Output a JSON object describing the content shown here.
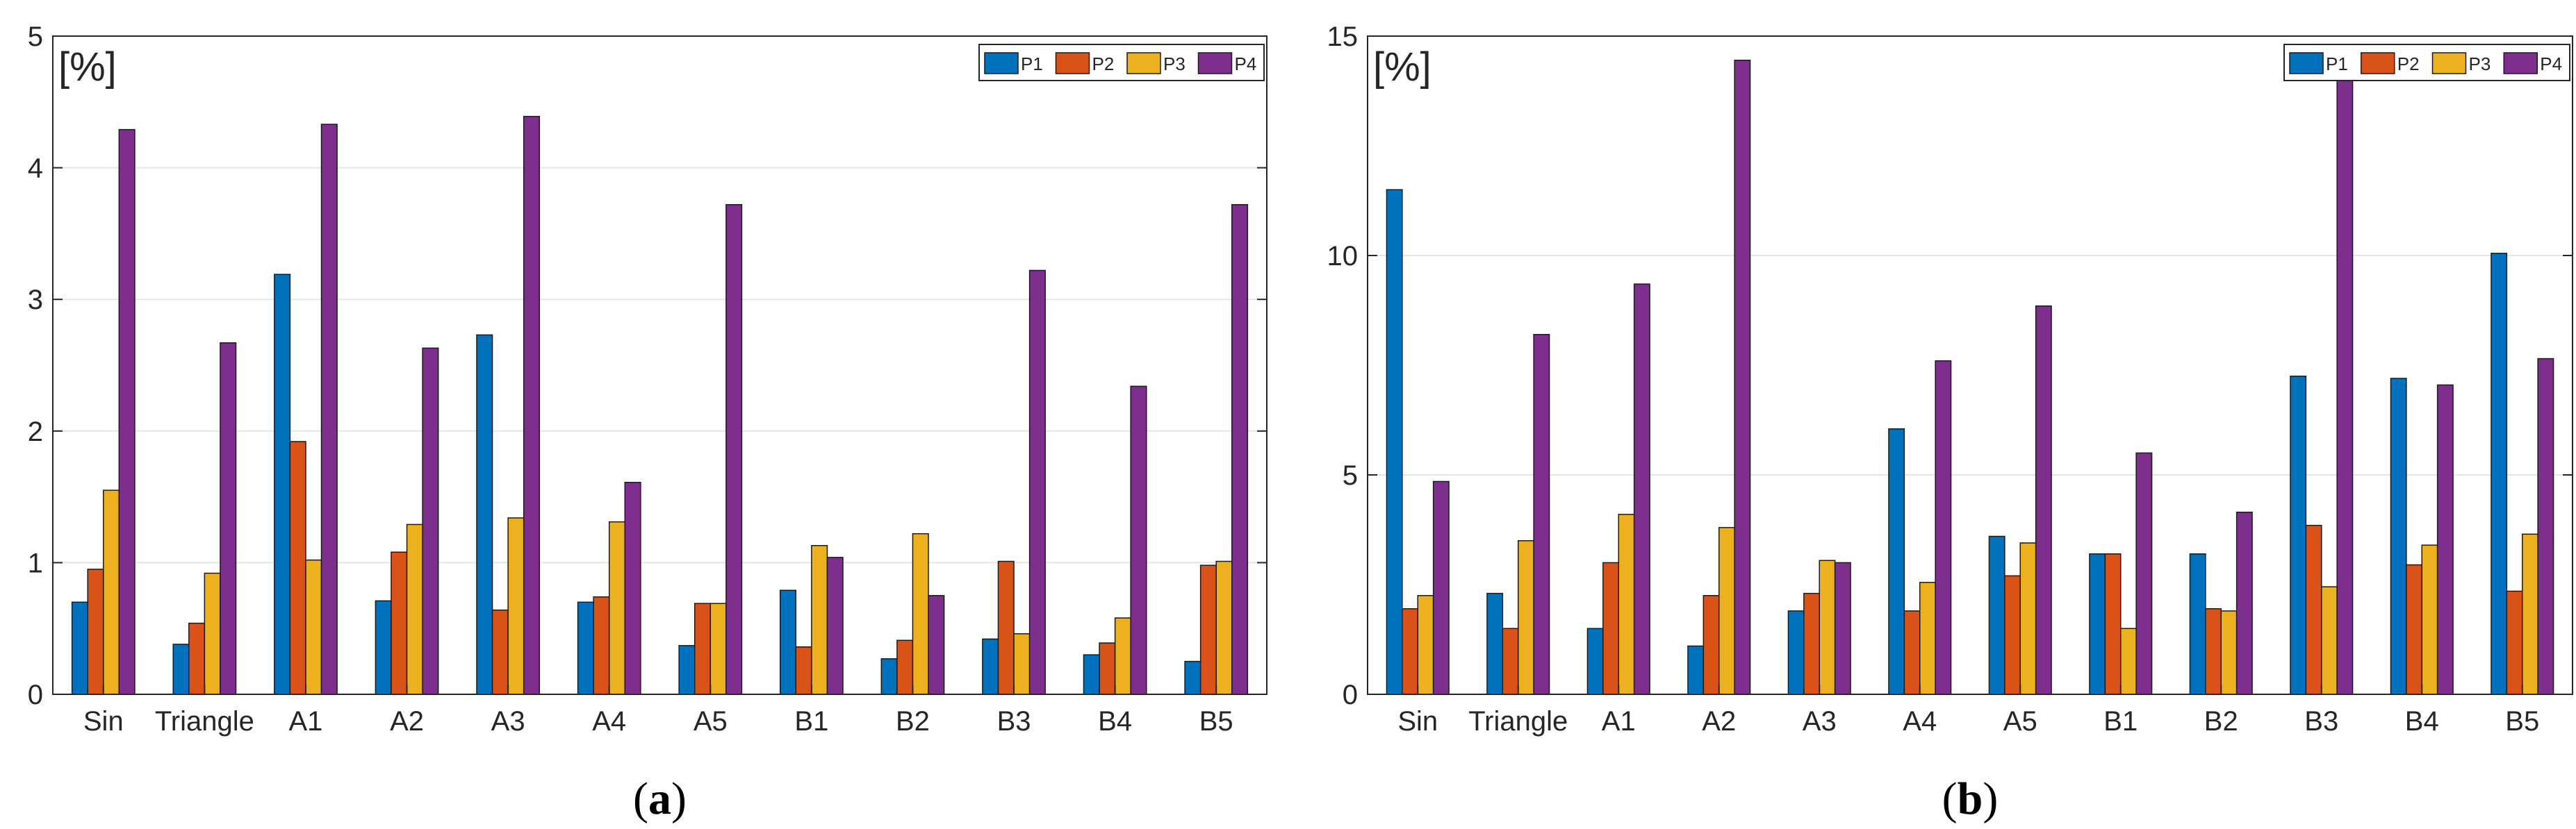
{
  "chart_data": [
    {
      "type": "bar",
      "panel_label": {
        "open": "(",
        "letter": "a",
        "close": ")"
      },
      "unit_label": "[%]",
      "categories": [
        "Sin",
        "Triangle",
        "A1",
        "A2",
        "A3",
        "A4",
        "A5",
        "B1",
        "B2",
        "B3",
        "B4",
        "B5"
      ],
      "ylim": [
        0,
        5
      ],
      "yticks": [
        0,
        1,
        2,
        3,
        4,
        5
      ],
      "grid": true,
      "legend_position": "top-right",
      "series": [
        {
          "name": "P1",
          "color": "#0072BD",
          "values": [
            0.7,
            0.38,
            3.19,
            0.71,
            2.73,
            0.7,
            0.37,
            0.79,
            0.27,
            0.42,
            0.3,
            0.25
          ]
        },
        {
          "name": "P2",
          "color": "#D95319",
          "values": [
            0.95,
            0.54,
            1.92,
            1.08,
            0.64,
            0.74,
            0.69,
            0.36,
            0.41,
            1.01,
            0.39,
            0.98
          ]
        },
        {
          "name": "P3",
          "color": "#EDB120",
          "values": [
            1.55,
            0.92,
            1.02,
            1.29,
            1.34,
            1.31,
            0.69,
            1.13,
            1.22,
            0.46,
            0.58,
            1.01
          ]
        },
        {
          "name": "P4",
          "color": "#7E2F8E",
          "values": [
            4.29,
            2.67,
            4.33,
            2.63,
            4.39,
            1.61,
            3.72,
            1.04,
            0.75,
            3.22,
            2.34,
            3.72
          ]
        }
      ]
    },
    {
      "type": "bar",
      "panel_label": {
        "open": "(",
        "letter": "b",
        "close": ")"
      },
      "unit_label": "[%]",
      "categories": [
        "Sin",
        "Triangle",
        "A1",
        "A2",
        "A3",
        "A4",
        "A5",
        "B1",
        "B2",
        "B3",
        "B4",
        "B5"
      ],
      "ylim": [
        0,
        15
      ],
      "yticks": [
        0,
        5,
        10,
        15
      ],
      "grid": true,
      "legend_position": "top-right",
      "series": [
        {
          "name": "P1",
          "color": "#0072BD",
          "values": [
            11.5,
            2.3,
            1.5,
            1.1,
            1.9,
            6.05,
            3.6,
            3.2,
            3.2,
            7.25,
            7.2,
            10.05
          ]
        },
        {
          "name": "P2",
          "color": "#D95319",
          "values": [
            1.95,
            1.5,
            3.0,
            2.25,
            2.3,
            1.9,
            2.7,
            3.2,
            1.95,
            3.85,
            2.95,
            2.35
          ]
        },
        {
          "name": "P3",
          "color": "#EDB120",
          "values": [
            2.25,
            3.5,
            4.1,
            3.8,
            3.05,
            2.55,
            3.45,
            1.5,
            1.9,
            2.45,
            3.4,
            3.65
          ]
        },
        {
          "name": "P4",
          "color": "#7E2F8E",
          "values": [
            4.85,
            8.2,
            9.35,
            14.45,
            3.0,
            7.6,
            8.85,
            5.5,
            4.15,
            14.6,
            7.05,
            7.65
          ]
        }
      ]
    }
  ]
}
